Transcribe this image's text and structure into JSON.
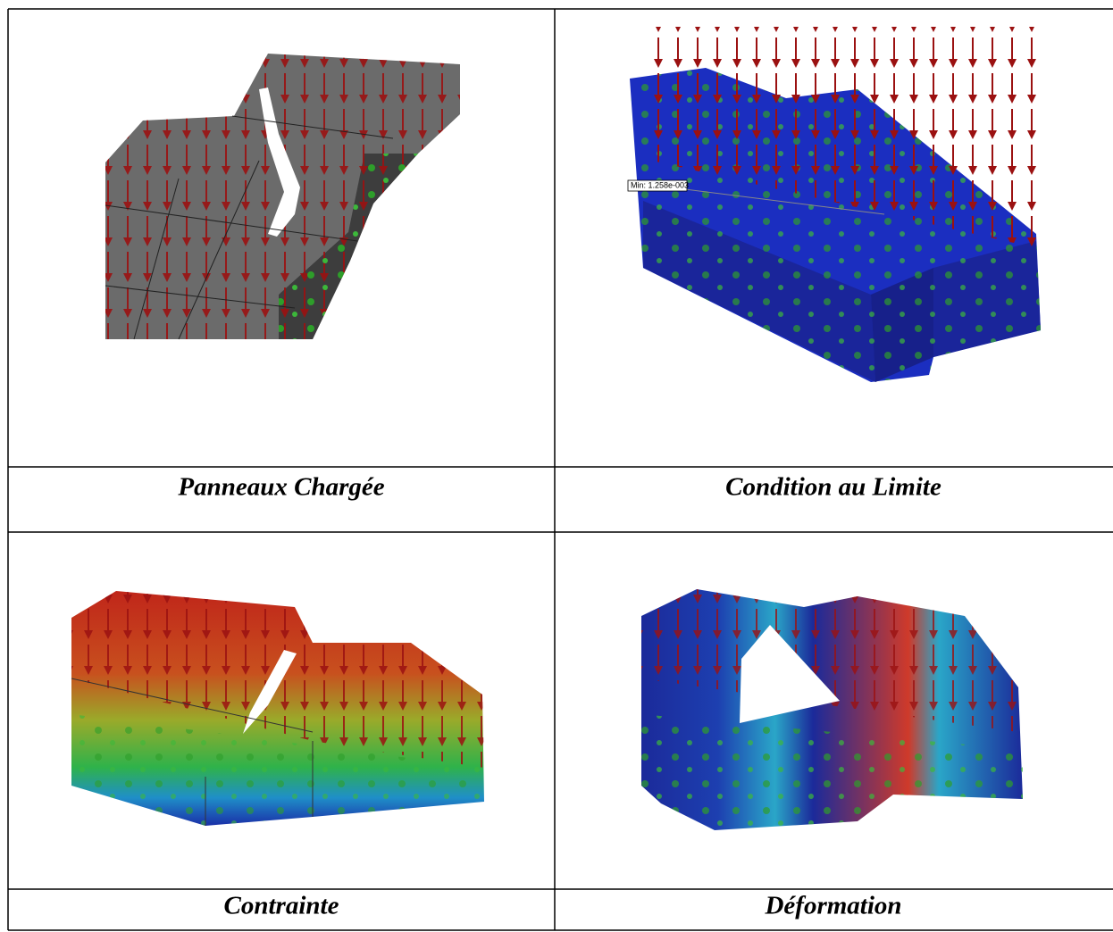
{
  "cells": [
    {
      "caption": "Panneaux Chargée"
    },
    {
      "caption": "Condition au Limite",
      "annotation": "Min: 1.258e-003"
    },
    {
      "caption": "Contrainte"
    },
    {
      "caption": "Déformation"
    }
  ]
}
